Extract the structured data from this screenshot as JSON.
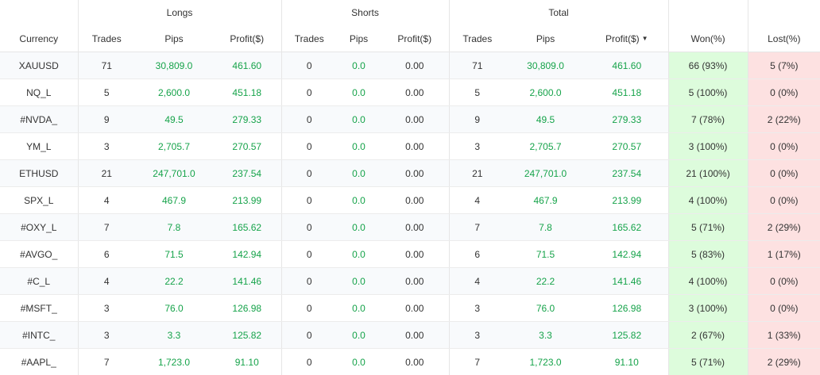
{
  "groups": {
    "longs": "Longs",
    "shorts": "Shorts",
    "total": "Total"
  },
  "columns": {
    "currency": "Currency",
    "long_trades": "Trades",
    "long_pips": "Pips",
    "long_profit": "Profit($)",
    "short_trades": "Trades",
    "short_pips": "Pips",
    "short_profit": "Profit($)",
    "total_trades": "Trades",
    "total_pips": "Pips",
    "total_profit": "Profit($)",
    "won": "Won(%)",
    "lost": "Lost(%)",
    "sort_indicator": "▼"
  },
  "rows": [
    {
      "currency": "XAUUSD",
      "long_trades": "71",
      "long_pips": "30,809.0",
      "long_profit": "461.60",
      "short_trades": "0",
      "short_pips": "0.0",
      "short_profit": "0.00",
      "total_trades": "71",
      "total_pips": "30,809.0",
      "total_profit": "461.60",
      "won": "66 (93%)",
      "lost": "5 (7%)"
    },
    {
      "currency": "NQ_L",
      "long_trades": "5",
      "long_pips": "2,600.0",
      "long_profit": "451.18",
      "short_trades": "0",
      "short_pips": "0.0",
      "short_profit": "0.00",
      "total_trades": "5",
      "total_pips": "2,600.0",
      "total_profit": "451.18",
      "won": "5 (100%)",
      "lost": "0 (0%)"
    },
    {
      "currency": "#NVDA_",
      "long_trades": "9",
      "long_pips": "49.5",
      "long_profit": "279.33",
      "short_trades": "0",
      "short_pips": "0.0",
      "short_profit": "0.00",
      "total_trades": "9",
      "total_pips": "49.5",
      "total_profit": "279.33",
      "won": "7 (78%)",
      "lost": "2 (22%)"
    },
    {
      "currency": "YM_L",
      "long_trades": "3",
      "long_pips": "2,705.7",
      "long_profit": "270.57",
      "short_trades": "0",
      "short_pips": "0.0",
      "short_profit": "0.00",
      "total_trades": "3",
      "total_pips": "2,705.7",
      "total_profit": "270.57",
      "won": "3 (100%)",
      "lost": "0 (0%)"
    },
    {
      "currency": "ETHUSD",
      "long_trades": "21",
      "long_pips": "247,701.0",
      "long_profit": "237.54",
      "short_trades": "0",
      "short_pips": "0.0",
      "short_profit": "0.00",
      "total_trades": "21",
      "total_pips": "247,701.0",
      "total_profit": "237.54",
      "won": "21 (100%)",
      "lost": "0 (0%)"
    },
    {
      "currency": "SPX_L",
      "long_trades": "4",
      "long_pips": "467.9",
      "long_profit": "213.99",
      "short_trades": "0",
      "short_pips": "0.0",
      "short_profit": "0.00",
      "total_trades": "4",
      "total_pips": "467.9",
      "total_profit": "213.99",
      "won": "4 (100%)",
      "lost": "0 (0%)"
    },
    {
      "currency": "#OXY_L",
      "long_trades": "7",
      "long_pips": "7.8",
      "long_profit": "165.62",
      "short_trades": "0",
      "short_pips": "0.0",
      "short_profit": "0.00",
      "total_trades": "7",
      "total_pips": "7.8",
      "total_profit": "165.62",
      "won": "5 (71%)",
      "lost": "2 (29%)"
    },
    {
      "currency": "#AVGO_",
      "long_trades": "6",
      "long_pips": "71.5",
      "long_profit": "142.94",
      "short_trades": "0",
      "short_pips": "0.0",
      "short_profit": "0.00",
      "total_trades": "6",
      "total_pips": "71.5",
      "total_profit": "142.94",
      "won": "5 (83%)",
      "lost": "1 (17%)"
    },
    {
      "currency": "#C_L",
      "long_trades": "4",
      "long_pips": "22.2",
      "long_profit": "141.46",
      "short_trades": "0",
      "short_pips": "0.0",
      "short_profit": "0.00",
      "total_trades": "4",
      "total_pips": "22.2",
      "total_profit": "141.46",
      "won": "4 (100%)",
      "lost": "0 (0%)"
    },
    {
      "currency": "#MSFT_",
      "long_trades": "3",
      "long_pips": "76.0",
      "long_profit": "126.98",
      "short_trades": "0",
      "short_pips": "0.0",
      "short_profit": "0.00",
      "total_trades": "3",
      "total_pips": "76.0",
      "total_profit": "126.98",
      "won": "3 (100%)",
      "lost": "0 (0%)"
    },
    {
      "currency": "#INTC_",
      "long_trades": "3",
      "long_pips": "3.3",
      "long_profit": "125.82",
      "short_trades": "0",
      "short_pips": "0.0",
      "short_profit": "0.00",
      "total_trades": "3",
      "total_pips": "3.3",
      "total_profit": "125.82",
      "won": "2 (67%)",
      "lost": "1 (33%)"
    },
    {
      "currency": "#AAPL_",
      "long_trades": "7",
      "long_pips": "1,723.0",
      "long_profit": "91.10",
      "short_trades": "0",
      "short_pips": "0.0",
      "short_profit": "0.00",
      "total_trades": "7",
      "total_pips": "1,723.0",
      "total_profit": "91.10",
      "won": "5 (71%)",
      "lost": "2 (29%)"
    }
  ],
  "colors": {
    "positive_text": "#16a34a",
    "won_bg": "#ddfcdc",
    "lost_bg": "#fde1e1"
  }
}
